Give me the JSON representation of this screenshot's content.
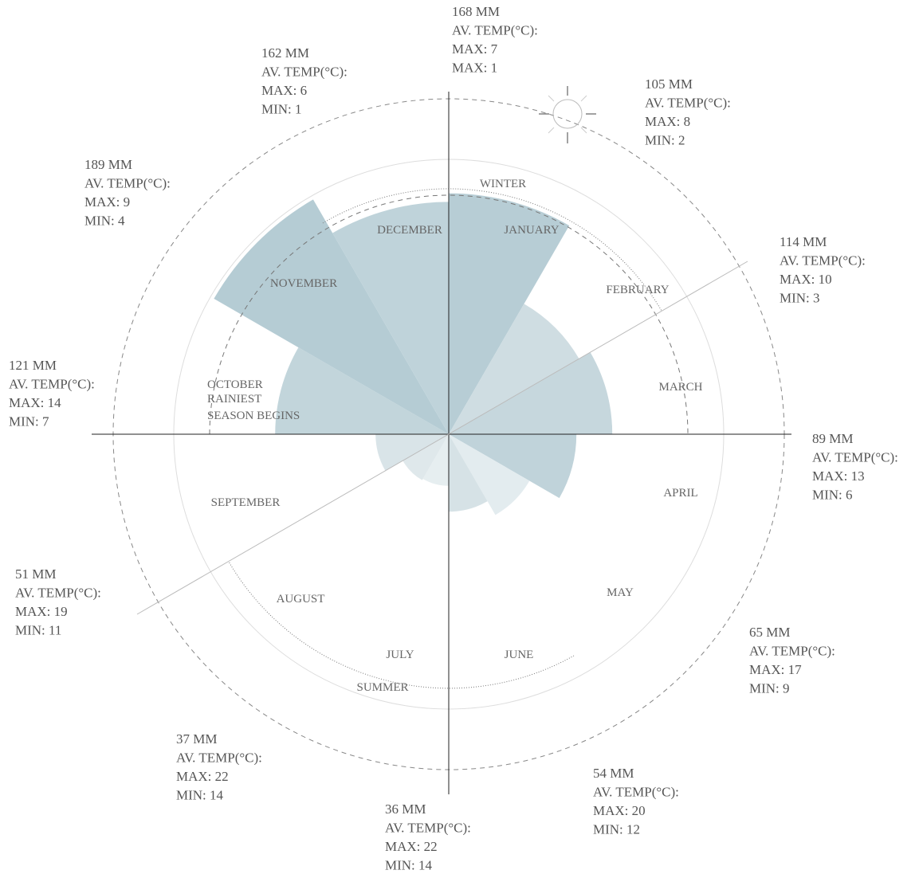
{
  "chart_data": {
    "type": "rose",
    "categories": [
      "JANUARY",
      "FEBRUARY",
      "MARCH",
      "APRIL",
      "MAY",
      "JUNE",
      "JULY",
      "AUGUST",
      "SEPTEMBER",
      "OCTOBER",
      "NOVEMBER",
      "DECEMBER"
    ],
    "values": [
      168,
      105,
      114,
      89,
      65,
      54,
      36,
      37,
      51,
      121,
      189,
      162
    ],
    "value_labels": [
      "168 MM",
      "105 MM",
      "114 MM",
      "89 MM",
      "65 MM",
      "54 MM",
      "36 MM",
      "37 MM",
      "51 MM",
      "121 MM",
      "189 MM",
      "162 MM"
    ],
    "colors": [
      "#b7cdd5",
      "#cfdde2",
      "#c6d7dd",
      "#c0d3da",
      "#e3ecef",
      "#d6e2e6",
      "#e6eef0",
      "#dfe8eb",
      "#d9e4e8",
      "#c2d5db",
      "#b5ccd4",
      "#bfd3da"
    ],
    "temp_heading": "AV. TEMP(°C):",
    "max_labels": [
      "MAX: 7",
      "MAX: 8",
      "MAX: 10",
      "MAX: 13",
      "MAX: 17",
      "MAX: 20",
      "MAX: 22",
      "MAX: 22",
      "MAX: 19",
      "MAX: 14",
      "MAX: 9",
      "MAX: 6"
    ],
    "min_labels": [
      "MAX: 1",
      "MIN: 2",
      "MIN: 3",
      "MIN: 6",
      "MIN: 9",
      "MIN: 12",
      "MIN: 14",
      "MIN: 14",
      "MIN: 11",
      "MIN: 7",
      "MIN: 4",
      "MIN: 1"
    ],
    "season_labels": [
      "WINTER",
      "SUMMER"
    ],
    "note": [
      "RAINIEST",
      "SEASON BEGINS"
    ]
  }
}
